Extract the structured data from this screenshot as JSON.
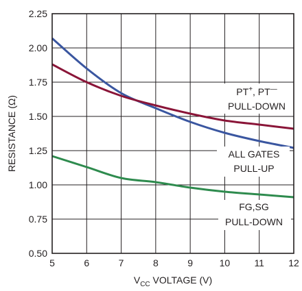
{
  "chart_data": {
    "type": "line",
    "title": "",
    "xlabel": {
      "prefix": "V",
      "subscript": "CC",
      "suffix": " VOLTAGE (V)"
    },
    "ylabel": "RESISTANCE (Ω)",
    "xlim": [
      5,
      12
    ],
    "ylim": [
      0.5,
      2.25
    ],
    "x_ticks": [
      5,
      6,
      7,
      8,
      9,
      10,
      11,
      12
    ],
    "y_ticks": [
      "0.50",
      "0.75",
      "1.00",
      "1.25",
      "1.50",
      "1.75",
      "2.00",
      "2.25"
    ],
    "grid": true,
    "colors": {
      "grid": "#231f20",
      "frame": "#231f20"
    },
    "series": [
      {
        "id": "blue",
        "color": "#3a56a0",
        "x": [
          5,
          6,
          7,
          8,
          9,
          10,
          11,
          12
        ],
        "y": [
          2.07,
          1.85,
          1.67,
          1.56,
          1.46,
          1.38,
          1.32,
          1.27
        ]
      },
      {
        "id": "maroon",
        "color": "#8a1538",
        "x": [
          5,
          6,
          7,
          8,
          9,
          10,
          11,
          12
        ],
        "y": [
          1.88,
          1.75,
          1.65,
          1.58,
          1.52,
          1.47,
          1.44,
          1.41
        ]
      },
      {
        "id": "green",
        "color": "#2e8b4e",
        "x": [
          5,
          6,
          7,
          8,
          9,
          10,
          11,
          12
        ],
        "y": [
          1.21,
          1.13,
          1.05,
          1.02,
          0.98,
          0.95,
          0.93,
          0.91
        ]
      }
    ],
    "annotations": {
      "pt_line1_pre": "PT",
      "pt_sup1": "+",
      "pt_mid": ", PT",
      "pt_sup2": "—",
      "pt_line2": "PULL-DOWN",
      "gates_line1": "ALL GATES",
      "gates_line2": "PULL-UP",
      "fg_line1": "FG,SG",
      "fg_line2": "PULL-DOWN"
    }
  }
}
